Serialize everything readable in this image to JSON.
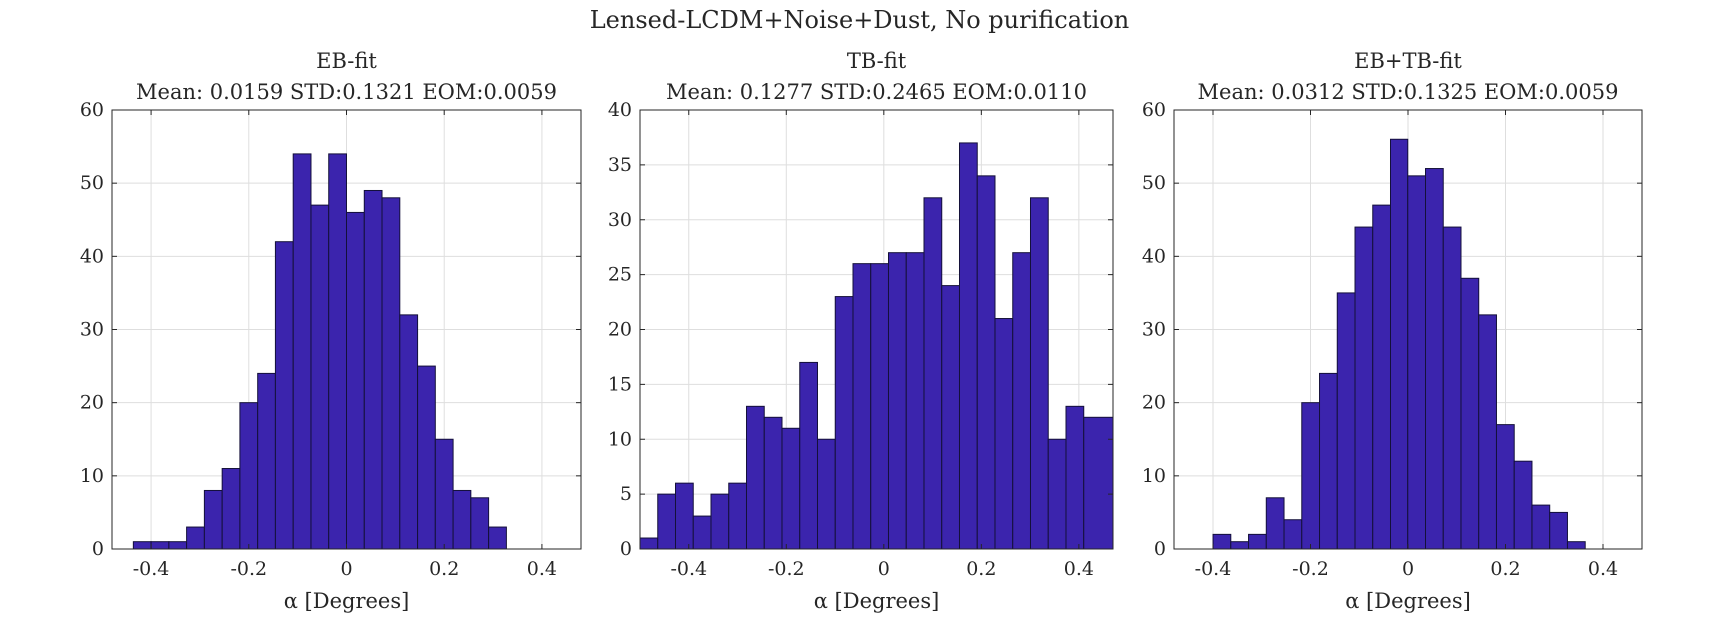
{
  "figure": {
    "suptitle": "Lensed-LCDM+Noise+Dust, No purification"
  },
  "colors": {
    "bar_fill": "#3b24ad",
    "bar_edge": "#14103a",
    "grid": "#dedede",
    "axis": "#262626"
  },
  "chart_data": [
    {
      "type": "bar",
      "title": "EB-fit",
      "subtitle": "Mean: 0.0159 STD:0.1321 EOM:0.0059",
      "xlabel": "α [Degrees]",
      "ylabel": "",
      "xlim": [
        -0.48,
        0.48
      ],
      "ylim": [
        0,
        60
      ],
      "xticks": [
        -0.4,
        -0.2,
        0,
        0.2,
        0.4
      ],
      "xtick_labels": [
        "-0.4",
        "-0.2",
        "0",
        "0.2",
        "0.4"
      ],
      "yticks": [
        0,
        10,
        20,
        30,
        40,
        50,
        60
      ],
      "grid": true,
      "bin_edges": [
        -0.48,
        -0.4363,
        -0.4,
        -0.3636,
        -0.3273,
        -0.2909,
        -0.2545,
        -0.2182,
        -0.1818,
        -0.1455,
        -0.1091,
        -0.0727,
        -0.0364,
        0.0,
        0.0364,
        0.0727,
        0.1091,
        0.1455,
        0.1818,
        0.2182,
        0.2545,
        0.2909,
        0.3273,
        0.3636,
        0.48
      ],
      "values": [
        0,
        1,
        1,
        1,
        3,
        8,
        11,
        20,
        24,
        42,
        54,
        47,
        54,
        46,
        49,
        48,
        32,
        25,
        15,
        8,
        7,
        3,
        0,
        0
      ]
    },
    {
      "type": "bar",
      "title": "TB-fit",
      "subtitle": "Mean: 0.1277 STD:0.2465 EOM:0.0110",
      "xlabel": "α [Degrees]",
      "ylabel": "",
      "xlim": [
        -0.5,
        0.47
      ],
      "ylim": [
        0,
        40
      ],
      "xticks": [
        -0.4,
        -0.2,
        0,
        0.2,
        0.4
      ],
      "xtick_labels": [
        "-0.4",
        "-0.2",
        "0",
        "0.2",
        "0.4"
      ],
      "yticks": [
        0,
        5,
        10,
        15,
        20,
        25,
        30,
        35,
        40
      ],
      "grid": true,
      "bin_edges": [
        -0.5,
        -0.4636,
        -0.4272,
        -0.3908,
        -0.3544,
        -0.318,
        -0.2816,
        -0.2452,
        -0.2088,
        -0.1724,
        -0.136,
        -0.0996,
        -0.0632,
        -0.0268,
        0.0096,
        0.046,
        0.0824,
        0.1188,
        0.1552,
        0.1916,
        0.228,
        0.2644,
        0.3008,
        0.3372,
        0.3736,
        0.41,
        0.47
      ],
      "values": [
        1,
        5,
        6,
        3,
        5,
        6,
        13,
        12,
        11,
        17,
        10,
        23,
        26,
        26,
        27,
        27,
        32,
        24,
        37,
        34,
        21,
        27,
        32,
        10,
        13,
        12
      ]
    },
    {
      "type": "bar",
      "title": "EB+TB-fit",
      "subtitle": "Mean: 0.0312 STD:0.1325 EOM:0.0059",
      "xlabel": "α [Degrees]",
      "ylabel": "",
      "xlim": [
        -0.48,
        0.48
      ],
      "ylim": [
        0,
        60
      ],
      "xticks": [
        -0.4,
        -0.2,
        0,
        0.2,
        0.4
      ],
      "xtick_labels": [
        "-0.4",
        "-0.2",
        "0",
        "0.2",
        "0.4"
      ],
      "yticks": [
        0,
        10,
        20,
        30,
        40,
        50,
        60
      ],
      "grid": true,
      "bin_edges": [
        -0.48,
        -0.3999,
        -0.3635,
        -0.3271,
        -0.2907,
        -0.2543,
        -0.2179,
        -0.1815,
        -0.1451,
        -0.1087,
        -0.0723,
        -0.0359,
        -0.0005,
        0.0359,
        0.0723,
        0.1087,
        0.1451,
        0.1815,
        0.2179,
        0.2543,
        0.2907,
        0.3271,
        0.3635,
        0.3999,
        0.48
      ],
      "values": [
        0,
        2,
        1,
        2,
        7,
        4,
        20,
        24,
        35,
        44,
        47,
        56,
        51,
        52,
        44,
        37,
        32,
        17,
        12,
        6,
        5,
        1,
        0,
        0
      ]
    }
  ]
}
